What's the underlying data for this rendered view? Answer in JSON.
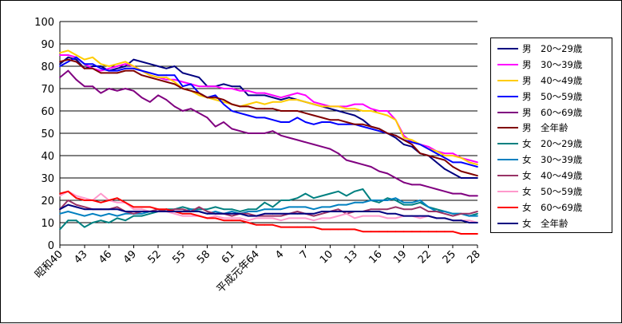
{
  "chart_data": {
    "type": "line",
    "title": "",
    "xlabel": "",
    "ylabel": "",
    "ylim": [
      0,
      100
    ],
    "yticks": [
      0,
      10,
      20,
      30,
      40,
      50,
      60,
      70,
      80,
      90,
      100
    ],
    "grid": "horizontal",
    "legend_position": "right",
    "x_tick_labels": [
      "昭和40",
      "43",
      "46",
      "49",
      "52",
      "55",
      "58",
      "61",
      "平成元年64",
      "4",
      "7",
      "10",
      "13",
      "16",
      "19",
      "22",
      "25",
      "28"
    ],
    "x_years": [
      1965,
      1966,
      1967,
      1968,
      1969,
      1970,
      1971,
      1972,
      1973,
      1974,
      1975,
      1976,
      1977,
      1978,
      1979,
      1980,
      1981,
      1982,
      1983,
      1984,
      1985,
      1986,
      1987,
      1988,
      1989,
      1990,
      1991,
      1992,
      1993,
      1994,
      1995,
      1996,
      1997,
      1998,
      1999,
      2000,
      2001,
      2002,
      2003,
      2004,
      2005,
      2006,
      2007,
      2008,
      2009,
      2010,
      2011,
      2012,
      2013,
      2014,
      2015,
      2016
    ],
    "series": [
      {
        "name": "男　20～29歳",
        "color": "#000080",
        "values": [
          81,
          84,
          83,
          79,
          80,
          80,
          78,
          79,
          80,
          83,
          82,
          81,
          80,
          79,
          80,
          77,
          76,
          75,
          71,
          71,
          72,
          71,
          71,
          67,
          67,
          67,
          66,
          65,
          66,
          65,
          64,
          63,
          62,
          61,
          60,
          59,
          58,
          56,
          53,
          52,
          50,
          48,
          45,
          44,
          41,
          40,
          37,
          34,
          32,
          30,
          30,
          30
        ]
      },
      {
        "name": "男　30～39歳",
        "color": "#ff00ff",
        "values": [
          85,
          85,
          84,
          81,
          79,
          78,
          79,
          80,
          81,
          80,
          78,
          76,
          75,
          74,
          74,
          73,
          72,
          71,
          71,
          71,
          70,
          70,
          69,
          69,
          68,
          68,
          67,
          66,
          67,
          68,
          67,
          64,
          63,
          62,
          62,
          62,
          63,
          63,
          61,
          60,
          60,
          56,
          49,
          46,
          45,
          44,
          42,
          41,
          41,
          39,
          38,
          37
        ]
      },
      {
        "name": "男　40～49歳",
        "color": "#ffcc00",
        "values": [
          86,
          87,
          85,
          83,
          84,
          81,
          80,
          81,
          82,
          80,
          78,
          76,
          75,
          75,
          73,
          70,
          69,
          67,
          66,
          65,
          64,
          63,
          62,
          63,
          64,
          63,
          64,
          64,
          65,
          65,
          64,
          63,
          62,
          62,
          62,
          61,
          61,
          60,
          60,
          59,
          58,
          56,
          48,
          47,
          45,
          43,
          42,
          40,
          40,
          39,
          37,
          36
        ]
      },
      {
        "name": "男　50～59歳",
        "color": "#0000ff",
        "values": [
          80,
          82,
          84,
          81,
          81,
          79,
          78,
          78,
          79,
          79,
          78,
          77,
          76,
          76,
          76,
          71,
          72,
          68,
          66,
          67,
          63,
          60,
          59,
          58,
          57,
          57,
          56,
          55,
          55,
          57,
          55,
          54,
          55,
          55,
          54,
          54,
          54,
          53,
          52,
          51,
          50,
          49,
          47,
          46,
          45,
          43,
          41,
          39,
          37,
          37,
          36,
          35
        ]
      },
      {
        "name": "男　60～69歳",
        "color": "#800080",
        "values": [
          75,
          78,
          74,
          71,
          71,
          68,
          70,
          69,
          70,
          69,
          66,
          64,
          67,
          65,
          62,
          60,
          61,
          59,
          57,
          53,
          55,
          52,
          51,
          50,
          50,
          50,
          51,
          49,
          48,
          47,
          46,
          45,
          44,
          43,
          41,
          38,
          37,
          36,
          35,
          33,
          32,
          30,
          28,
          27,
          27,
          26,
          25,
          24,
          23,
          23,
          22,
          22
        ]
      },
      {
        "name": "男　全年齢",
        "color": "#800000",
        "values": [
          82,
          83,
          82,
          79,
          79,
          77,
          77,
          77,
          78,
          78,
          76,
          75,
          74,
          73,
          72,
          70,
          69,
          68,
          66,
          66,
          65,
          63,
          62,
          62,
          61,
          61,
          61,
          60,
          60,
          60,
          59,
          58,
          57,
          56,
          56,
          55,
          54,
          54,
          53,
          52,
          50,
          49,
          47,
          45,
          41,
          40,
          39,
          38,
          35,
          33,
          32,
          31
        ]
      },
      {
        "name": "女　20～29歳",
        "color": "#008080",
        "values": [
          7,
          11,
          11,
          8,
          10,
          11,
          10,
          12,
          11,
          13,
          13,
          14,
          15,
          16,
          16,
          17,
          16,
          16,
          16,
          17,
          16,
          16,
          15,
          16,
          16,
          19,
          17,
          20,
          20,
          21,
          23,
          21,
          22,
          23,
          24,
          22,
          24,
          25,
          20,
          19,
          21,
          20,
          18,
          18,
          19,
          17,
          16,
          15,
          14,
          14,
          13,
          14
        ]
      },
      {
        "name": "女　30～39歳",
        "color": "#0080c0",
        "values": [
          14,
          15,
          14,
          13,
          14,
          13,
          14,
          13,
          14,
          14,
          14,
          15,
          15,
          16,
          15,
          15,
          16,
          15,
          14,
          15,
          14,
          15,
          14,
          15,
          15,
          16,
          16,
          16,
          17,
          17,
          17,
          16,
          17,
          17,
          18,
          18,
          19,
          19,
          20,
          20,
          20,
          21,
          19,
          19,
          20,
          17,
          15,
          15,
          14,
          14,
          13,
          13
        ]
      },
      {
        "name": "女　40～49歳",
        "color": "#993366",
        "values": [
          16,
          20,
          18,
          17,
          16,
          16,
          16,
          17,
          15,
          14,
          15,
          15,
          16,
          15,
          16,
          16,
          15,
          17,
          15,
          14,
          14,
          13,
          14,
          14,
          13,
          13,
          13,
          13,
          14,
          15,
          14,
          13,
          14,
          15,
          16,
          14,
          15,
          15,
          16,
          16,
          16,
          17,
          16,
          16,
          17,
          15,
          15,
          14,
          13,
          14,
          14,
          15
        ]
      },
      {
        "name": "女　50～59歳",
        "color": "#ff99cc",
        "values": [
          22,
          24,
          22,
          21,
          20,
          23,
          20,
          19,
          19,
          16,
          16,
          15,
          15,
          15,
          14,
          13,
          13,
          13,
          12,
          13,
          12,
          12,
          12,
          11,
          12,
          12,
          12,
          11,
          12,
          12,
          12,
          11,
          12,
          12,
          13,
          14,
          12,
          13,
          13,
          13,
          12,
          12,
          13,
          13,
          12,
          13,
          12,
          12,
          11,
          11,
          11,
          10
        ]
      },
      {
        "name": "女　60～69歳",
        "color": "#ff0000",
        "values": [
          23,
          24,
          21,
          20,
          20,
          19,
          20,
          21,
          19,
          17,
          17,
          17,
          16,
          16,
          15,
          14,
          14,
          13,
          12,
          12,
          11,
          11,
          11,
          10,
          9,
          9,
          9,
          8,
          8,
          8,
          8,
          8,
          7,
          7,
          7,
          7,
          7,
          6,
          6,
          6,
          6,
          6,
          6,
          6,
          6,
          6,
          6,
          6,
          6,
          5,
          5,
          5
        ]
      },
      {
        "name": "女　全年齢",
        "color": "#000080",
        "values": [
          16,
          18,
          17,
          16,
          16,
          16,
          16,
          16,
          15,
          15,
          15,
          15,
          15,
          15,
          15,
          15,
          15,
          15,
          14,
          14,
          14,
          14,
          14,
          13,
          13,
          14,
          14,
          14,
          14,
          14,
          14,
          14,
          15,
          15,
          15,
          15,
          15,
          15,
          15,
          15,
          14,
          14,
          13,
          13,
          13,
          13,
          12,
          12,
          11,
          11,
          10,
          10
        ]
      }
    ]
  }
}
